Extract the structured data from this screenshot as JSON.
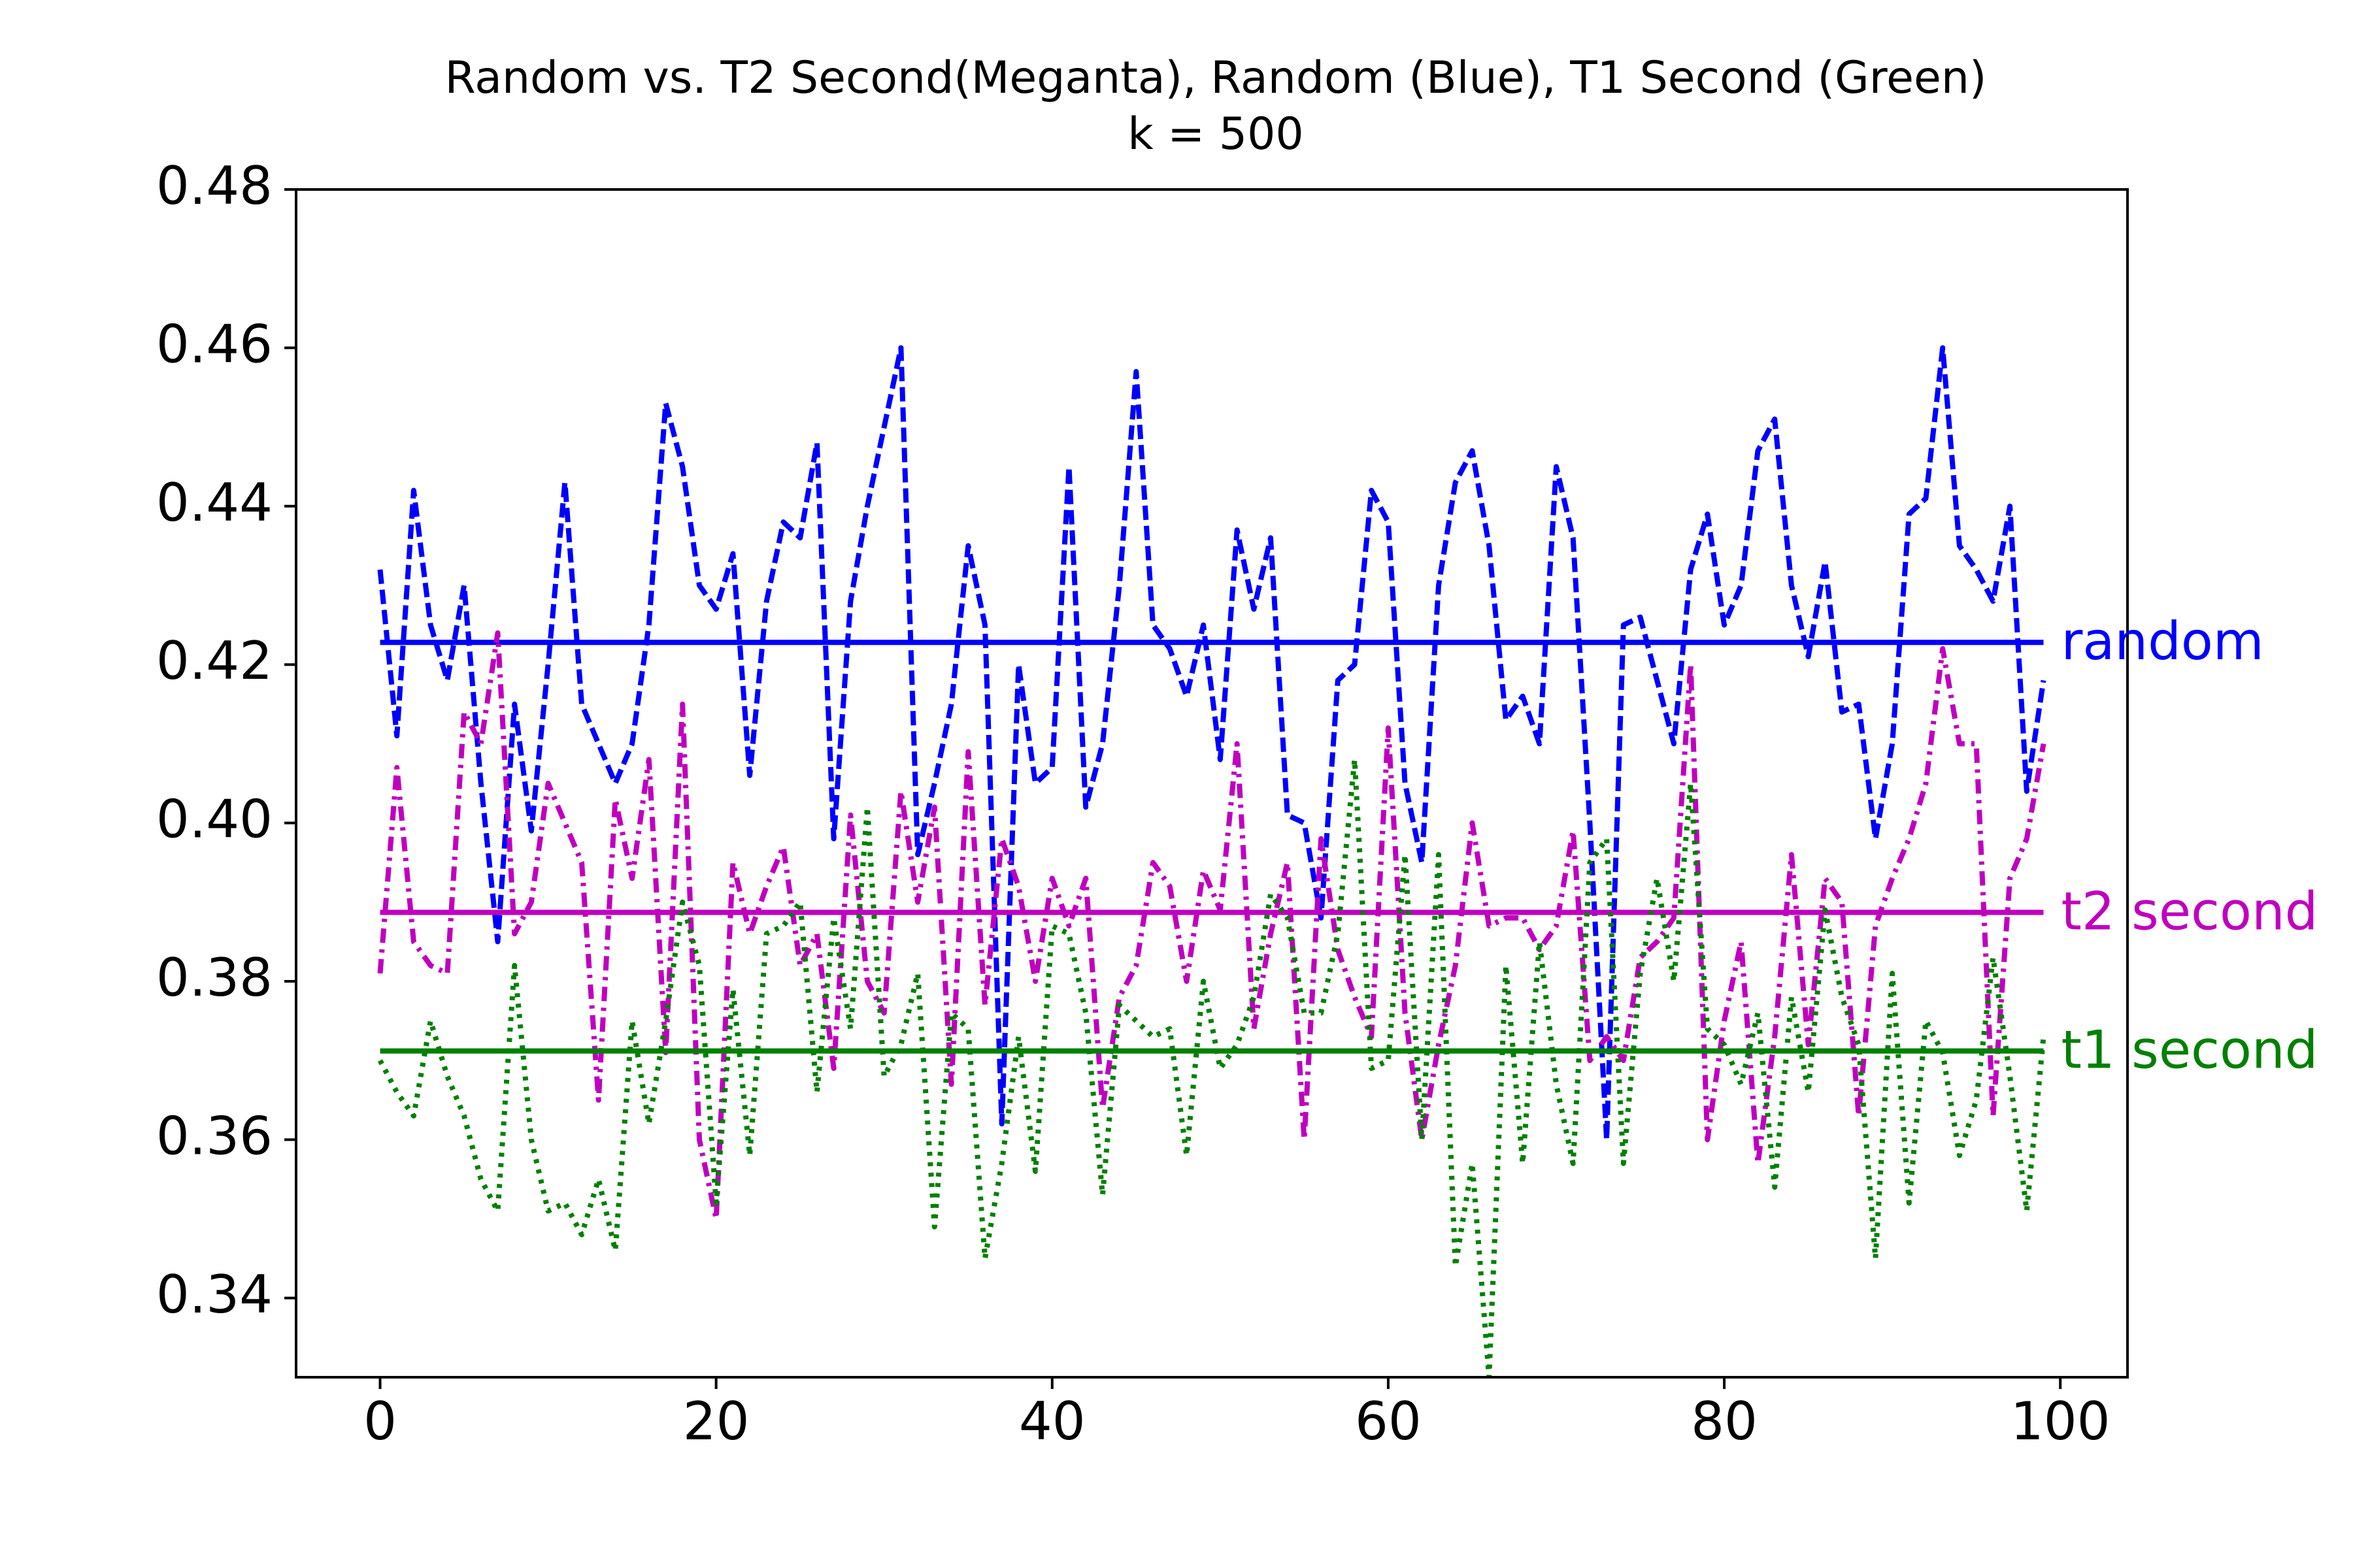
{
  "chart_data": {
    "type": "line",
    "title": "Random vs. T2 Second(Meganta), Random (Blue), T1 Second (Green)",
    "subtitle": "k = 500",
    "xlabel": "",
    "ylabel": "",
    "xlim": [
      -5,
      104
    ],
    "ylim": [
      0.33,
      0.48
    ],
    "xticks": [
      0,
      20,
      40,
      60,
      80,
      100
    ],
    "yticks": [
      0.34,
      0.36,
      0.38,
      0.4,
      0.42,
      0.44,
      0.46,
      0.48
    ],
    "xtick_labels": [
      "0",
      "20",
      "40",
      "60",
      "80",
      "100"
    ],
    "ytick_labels": [
      "0.34",
      "0.36",
      "0.38",
      "0.40",
      "0.42",
      "0.44",
      "0.46",
      "0.48"
    ],
    "grid": false,
    "x": [
      0,
      1,
      2,
      3,
      4,
      5,
      6,
      7,
      8,
      9,
      10,
      11,
      12,
      13,
      14,
      15,
      16,
      17,
      18,
      19,
      20,
      21,
      22,
      23,
      24,
      25,
      26,
      27,
      28,
      29,
      30,
      31,
      32,
      33,
      34,
      35,
      36,
      37,
      38,
      39,
      40,
      41,
      42,
      43,
      44,
      45,
      46,
      47,
      48,
      49,
      50,
      51,
      52,
      53,
      54,
      55,
      56,
      57,
      58,
      59,
      60,
      61,
      62,
      63,
      64,
      65,
      66,
      67,
      68,
      69,
      70,
      71,
      72,
      73,
      74,
      75,
      76,
      77,
      78,
      79,
      80,
      81,
      82,
      83,
      84,
      85,
      86,
      87,
      88,
      89,
      90,
      91,
      92,
      93,
      94,
      95,
      96,
      97,
      98,
      99
    ],
    "series": [
      {
        "name": "random",
        "color": "#0000ff",
        "dash": "dashed",
        "mean": 0.4228,
        "values": [
          0.432,
          0.411,
          0.442,
          0.425,
          0.418,
          0.43,
          0.405,
          0.385,
          0.415,
          0.399,
          0.42,
          0.443,
          0.415,
          0.41,
          0.405,
          0.41,
          0.425,
          0.453,
          0.445,
          0.43,
          0.427,
          0.434,
          0.406,
          0.428,
          0.438,
          0.436,
          0.448,
          0.398,
          0.428,
          0.44,
          0.45,
          0.46,
          0.396,
          0.405,
          0.415,
          0.435,
          0.425,
          0.362,
          0.42,
          0.405,
          0.407,
          0.445,
          0.402,
          0.41,
          0.43,
          0.457,
          0.425,
          0.422,
          0.416,
          0.425,
          0.408,
          0.437,
          0.427,
          0.436,
          0.401,
          0.4,
          0.388,
          0.418,
          0.42,
          0.442,
          0.438,
          0.405,
          0.395,
          0.43,
          0.443,
          0.447,
          0.435,
          0.413,
          0.416,
          0.41,
          0.445,
          0.436,
          0.4,
          0.36,
          0.425,
          0.426,
          0.418,
          0.41,
          0.432,
          0.439,
          0.425,
          0.43,
          0.447,
          0.451,
          0.43,
          0.421,
          0.433,
          0.414,
          0.415,
          0.398,
          0.41,
          0.439,
          0.441,
          0.46,
          0.435,
          0.432,
          0.428,
          0.44,
          0.404,
          0.418
        ]
      },
      {
        "name": "t2 second",
        "color": "#bf00bf",
        "dash": "dashdot",
        "mean": 0.3887,
        "values": [
          0.381,
          0.407,
          0.385,
          0.382,
          0.381,
          0.414,
          0.41,
          0.424,
          0.386,
          0.39,
          0.405,
          0.4,
          0.395,
          0.365,
          0.403,
          0.393,
          0.408,
          0.371,
          0.415,
          0.36,
          0.35,
          0.395,
          0.386,
          0.392,
          0.397,
          0.382,
          0.386,
          0.369,
          0.401,
          0.38,
          0.376,
          0.404,
          0.39,
          0.402,
          0.367,
          0.409,
          0.377,
          0.398,
          0.392,
          0.38,
          0.393,
          0.387,
          0.393,
          0.364,
          0.378,
          0.382,
          0.395,
          0.392,
          0.38,
          0.394,
          0.389,
          0.41,
          0.374,
          0.386,
          0.395,
          0.36,
          0.398,
          0.384,
          0.378,
          0.373,
          0.412,
          0.376,
          0.36,
          0.372,
          0.382,
          0.4,
          0.387,
          0.388,
          0.388,
          0.384,
          0.387,
          0.399,
          0.37,
          0.373,
          0.37,
          0.383,
          0.385,
          0.388,
          0.42,
          0.36,
          0.375,
          0.385,
          0.357,
          0.373,
          0.396,
          0.372,
          0.393,
          0.39,
          0.363,
          0.387,
          0.393,
          0.398,
          0.405,
          0.422,
          0.41,
          0.41,
          0.363,
          0.393,
          0.398,
          0.41
        ]
      },
      {
        "name": "t1 second",
        "color": "#008000",
        "dash": "dotted",
        "mean": 0.3712,
        "values": [
          0.37,
          0.366,
          0.363,
          0.375,
          0.368,
          0.363,
          0.355,
          0.351,
          0.382,
          0.36,
          0.351,
          0.352,
          0.348,
          0.355,
          0.346,
          0.375,
          0.362,
          0.375,
          0.39,
          0.382,
          0.352,
          0.379,
          0.358,
          0.386,
          0.387,
          0.39,
          0.366,
          0.388,
          0.374,
          0.402,
          0.368,
          0.372,
          0.381,
          0.349,
          0.376,
          0.374,
          0.345,
          0.357,
          0.373,
          0.356,
          0.387,
          0.386,
          0.376,
          0.353,
          0.377,
          0.375,
          0.373,
          0.374,
          0.358,
          0.38,
          0.369,
          0.372,
          0.378,
          0.391,
          0.388,
          0.376,
          0.376,
          0.386,
          0.408,
          0.369,
          0.37,
          0.396,
          0.36,
          0.396,
          0.344,
          0.357,
          0.33,
          0.382,
          0.357,
          0.385,
          0.367,
          0.357,
          0.395,
          0.398,
          0.357,
          0.381,
          0.393,
          0.38,
          0.405,
          0.374,
          0.372,
          0.367,
          0.376,
          0.354,
          0.378,
          0.366,
          0.389,
          0.378,
          0.372,
          0.345,
          0.381,
          0.352,
          0.375,
          0.371,
          0.358,
          0.365,
          0.383,
          0.368,
          0.351,
          0.373
        ]
      }
    ],
    "mean_labels": [
      "random",
      "t2 second",
      "t1 second"
    ],
    "legend": "none"
  }
}
